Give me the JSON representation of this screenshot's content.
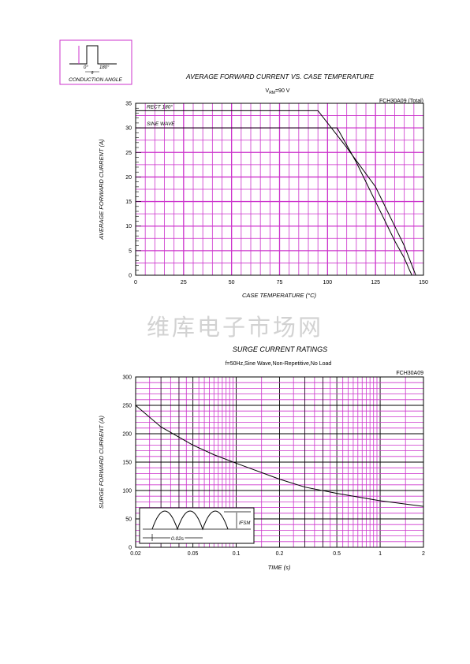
{
  "inset": {
    "label": "CONDUCTION ANGLE",
    "angle_start": "0°",
    "angle_end": "180°",
    "theta": "θ"
  },
  "watermark": "维库电子市场网",
  "chart_data": [
    {
      "type": "line",
      "title": "AVERAGE FORWARD CURRENT VS. CASE TEMPERATURE",
      "subtitle": "V RM=90 V",
      "subtitle_main": "V",
      "subtitle_sub": "RM",
      "subtitle_tail": "=90 V",
      "part": "FCH30A09 (Total)",
      "xlabel": "CASE TEMPERATURE (°C)",
      "ylabel": "AVERAGE FORWARD CURRENT (A)",
      "xlim": [
        0,
        150
      ],
      "ylim": [
        0,
        35
      ],
      "x_ticks": [
        0,
        25,
        50,
        75,
        100,
        125,
        150
      ],
      "y_ticks": [
        0,
        5,
        10,
        15,
        20,
        25,
        30,
        35
      ],
      "grid": true,
      "series": [
        {
          "name": "RECT 180°",
          "x": [
            0,
            95,
            110,
            125,
            135,
            140,
            145,
            146
          ],
          "y": [
            33.5,
            33.5,
            26,
            18,
            10,
            6,
            1,
            0
          ]
        },
        {
          "name": "SINE WAVE",
          "x": [
            0,
            105,
            115,
            125,
            135,
            140,
            143,
            144
          ],
          "y": [
            30,
            30,
            23,
            15,
            7,
            3.5,
            0.8,
            0
          ]
        }
      ]
    },
    {
      "type": "line",
      "title": "SURGE CURRENT RATINGS",
      "subtitle": "f=50Hz,Sine Wave,Non-Repetitive,No Load",
      "part": "FCH30A09",
      "xlabel": "TIME (s)",
      "ylabel": "SURGE FORWARD CURRENT (A)",
      "x_scale": "log",
      "xlim": [
        0.02,
        2
      ],
      "ylim": [
        0,
        300
      ],
      "x_ticks": [
        0.02,
        0.05,
        0.1,
        0.2,
        0.5,
        1,
        2
      ],
      "x_tick_labels": [
        "0.02",
        "0.05",
        "0.1",
        "0.2",
        "0.5",
        "1",
        "2"
      ],
      "y_ticks": [
        0,
        50,
        100,
        150,
        200,
        250,
        300
      ],
      "grid": true,
      "series": [
        {
          "x": [
            0.02,
            0.03,
            0.05,
            0.07,
            0.1,
            0.2,
            0.3,
            0.5,
            1,
            2
          ],
          "y": [
            250,
            212,
            180,
            163,
            148,
            120,
            106,
            95,
            82,
            72
          ]
        }
      ],
      "inset": {
        "period_label": "0.02s",
        "peak_label": "IFSM"
      }
    }
  ]
}
